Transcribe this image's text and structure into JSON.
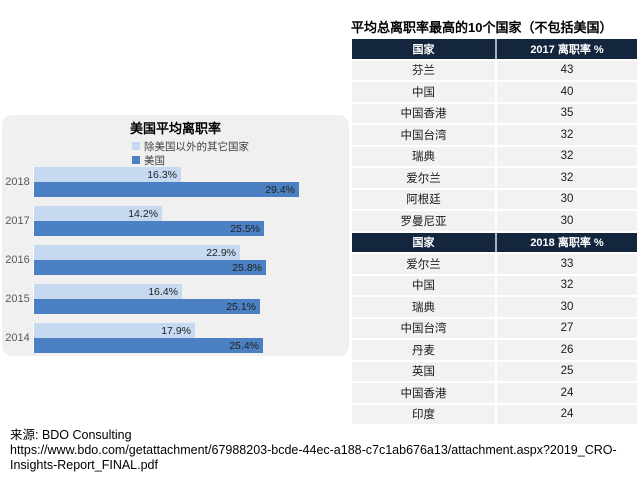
{
  "chart_data": {
    "type": "bar",
    "orientation": "horizontal",
    "title": "美国平均离职率",
    "categories": [
      "2018",
      "2017",
      "2016",
      "2015",
      "2014"
    ],
    "series": [
      {
        "name": "除美国以外的其它国家",
        "color": "#c6d9f1",
        "values": [
          16.3,
          14.2,
          22.9,
          16.4,
          17.9
        ]
      },
      {
        "name": "美国",
        "color": "#4b80c2",
        "values": [
          29.4,
          25.5,
          25.8,
          25.1,
          25.4
        ]
      }
    ],
    "value_suffix": "%",
    "xlim": [
      0,
      33.5
    ],
    "grid": false,
    "legend_position": "top",
    "data_labels": "inside-end"
  },
  "right_panel": {
    "title": "平均总离职率最高的10个国家（不包括美国）",
    "tables": [
      {
        "headers": [
          "国家",
          "2017 离职率 %"
        ],
        "rows": [
          [
            "芬兰",
            "43"
          ],
          [
            "中国",
            "40"
          ],
          [
            "中国香港",
            "35"
          ],
          [
            "中国台湾",
            "32"
          ],
          [
            "瑞典",
            "32"
          ],
          [
            "爱尔兰",
            "32"
          ],
          [
            "阿根廷",
            "30"
          ],
          [
            "罗曼尼亚",
            "30"
          ]
        ]
      },
      {
        "headers": [
          "国家",
          "2018 离职率 %"
        ],
        "rows": [
          [
            "爱尔兰",
            "33"
          ],
          [
            "中国",
            "32"
          ],
          [
            "瑞典",
            "30"
          ],
          [
            "中国台湾",
            "27"
          ],
          [
            "丹麦",
            "26"
          ],
          [
            "英国",
            "25"
          ],
          [
            "中国香港",
            "24"
          ],
          [
            "印度",
            "24"
          ]
        ]
      }
    ]
  },
  "source": {
    "label": "来源: BDO Consulting",
    "url": "https://www.bdo.com/getattachment/67988203-bcde-44ec-a188-c7c1ab676a13/attachment.aspx?2019_CRO-Insights-Report_FINAL.pdf"
  },
  "colors": {
    "bar_other_countries": "#c6d9f1",
    "bar_us": "#4b80c2",
    "table_header_bg": "#14253e",
    "table_row_bg": "#f2f2f2",
    "chart_panel_bg": "#f0f0f0"
  }
}
